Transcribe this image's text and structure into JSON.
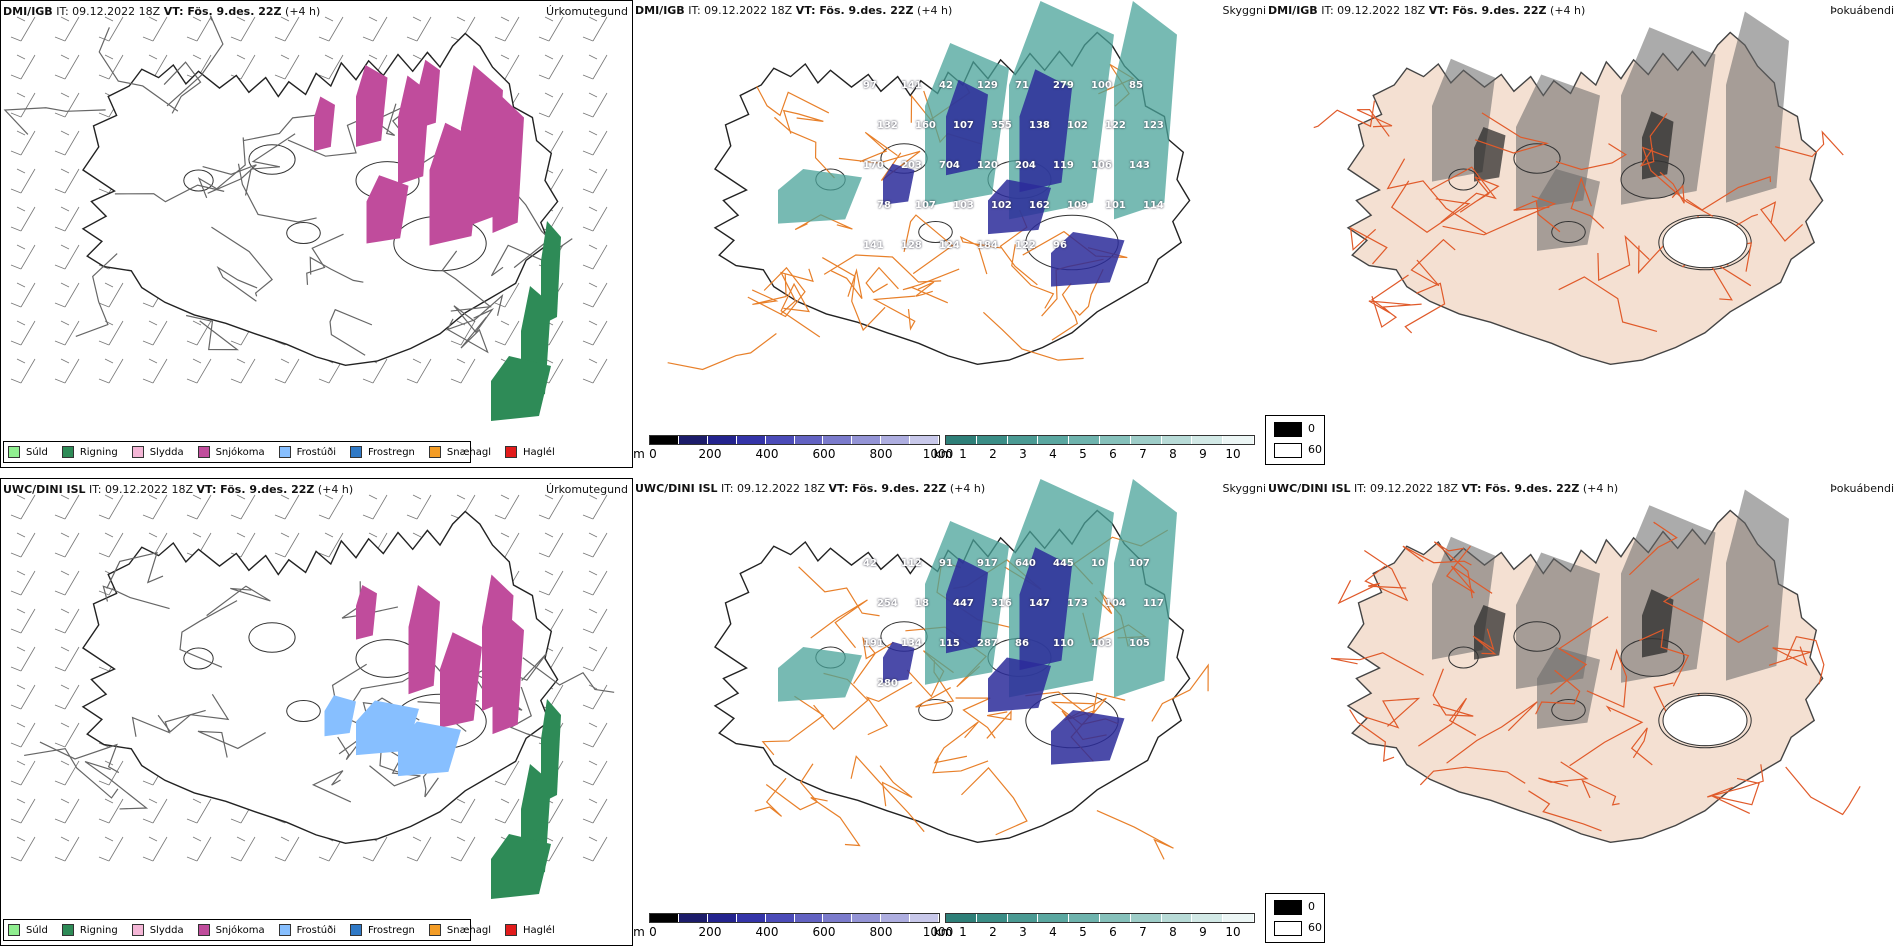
{
  "rows": [
    {
      "model": "DMI/IGB",
      "it_label": "IT:",
      "it_value": "09.12.2022 18Z",
      "vt_label": "VT: Fös. 9.des. 22Z",
      "lead": "(+4 h)",
      "precip_title": "Úrkomutegund",
      "vis_title": "Skyggni",
      "fog_title": "Þokuábendi",
      "vis_labels": [
        "97",
        "141",
        "42",
        "129",
        "71",
        "279",
        "100",
        "85",
        "132",
        "160",
        "107",
        "355",
        "138",
        "102",
        "122",
        "123",
        "170",
        "203",
        "704",
        "120",
        "204",
        "119",
        "106",
        "143",
        "78",
        "107",
        "103",
        "102",
        "162",
        "109",
        "101",
        "114",
        "141",
        "128",
        "124",
        "184",
        "122",
        "96"
      ]
    },
    {
      "model": "UWC/DINI ISL",
      "it_label": "IT:",
      "it_value": "09.12.2022 18Z",
      "vt_label": "VT: Fös. 9.des. 22Z",
      "lead": "(+4 h)",
      "precip_title": "Úrkomutegund",
      "vis_title": "Skyggni",
      "fog_title": "Þokuábendi",
      "vis_labels": [
        "42",
        "112",
        "91",
        "917",
        "640",
        "445",
        "10",
        "107",
        "254",
        "18",
        "447",
        "316",
        "147",
        "173",
        "104",
        "117",
        "191",
        "134",
        "115",
        "287",
        "86",
        "110",
        "103",
        "105",
        "280"
      ]
    }
  ],
  "precip_legend": [
    {
      "label": "Súld",
      "color": "#90ee90"
    },
    {
      "label": "Rigning",
      "color": "#2e8b57"
    },
    {
      "label": "Slydda",
      "color": "#f4b6d6"
    },
    {
      "label": "Snjókoma",
      "color": "#c04c9c"
    },
    {
      "label": "Frostúði",
      "color": "#87bfff"
    },
    {
      "label": "Frostregn",
      "color": "#2f79c6"
    },
    {
      "label": "Snæhagl",
      "color": "#f39c25"
    },
    {
      "label": "Haglél",
      "color": "#e21b1b"
    }
  ],
  "height_bar": {
    "unit": "m",
    "ticks": [
      "0",
      "200",
      "400",
      "600",
      "800",
      "1000"
    ]
  },
  "vis_bar": {
    "unit": "km",
    "ticks": [
      "1",
      "2",
      "3",
      "4",
      "5",
      "6",
      "7",
      "8",
      "9",
      "10"
    ]
  },
  "fog_key": {
    "black": "0",
    "white": "60"
  },
  "colors": {
    "snow": "#c04c9c",
    "rain": "#2e8b57",
    "freezing": "#87bfff",
    "low_cloud": "#2b2b9a",
    "teal": "#4aa39a",
    "roads": "#e8802a",
    "land_fog": "#f4e0d2"
  }
}
